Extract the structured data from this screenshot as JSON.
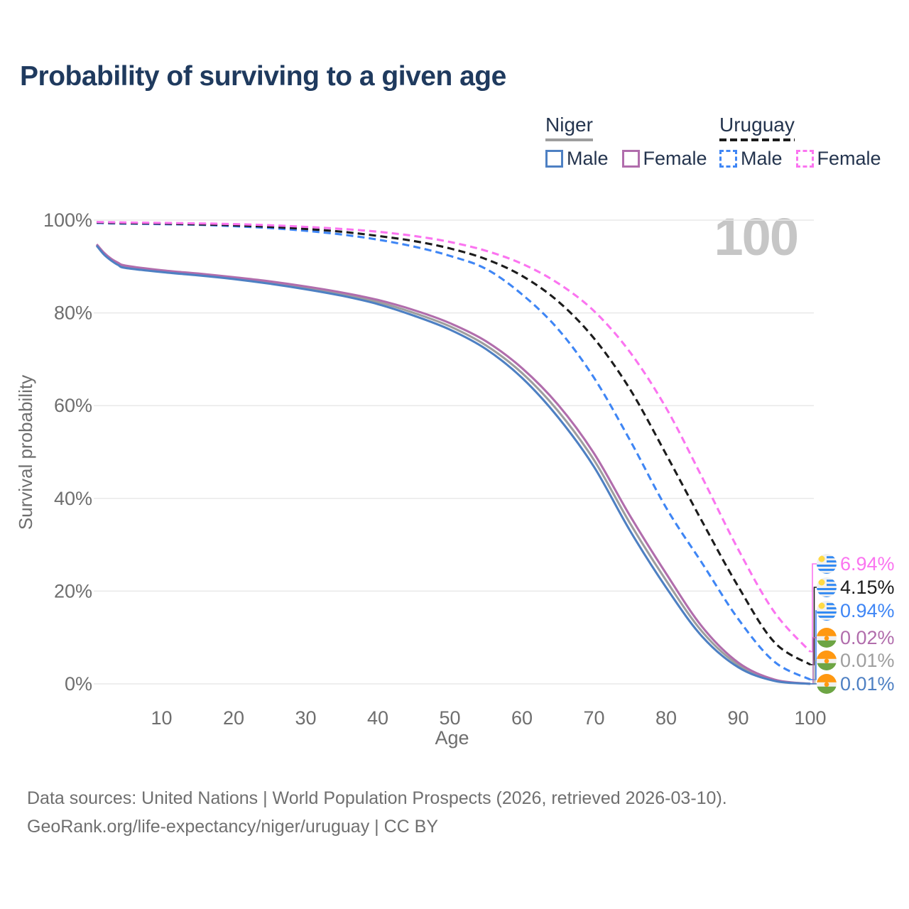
{
  "title": "Probability of surviving to a given age",
  "watermark": "100",
  "legend": {
    "groups": [
      {
        "country": "Niger",
        "style": "solid",
        "underline_color": "#9e9e9e",
        "items": [
          {
            "label": "Male",
            "series": "niger-male"
          },
          {
            "label": "Female",
            "series": "niger-female"
          }
        ]
      },
      {
        "country": "Uruguay",
        "style": "dashed",
        "underline_color": "#1c1c1c",
        "items": [
          {
            "label": "Male",
            "series": "uruguay-male"
          },
          {
            "label": "Female",
            "series": "uruguay-female"
          }
        ]
      }
    ]
  },
  "footer": {
    "line1": "Data sources: United Nations | World Population Prospects (2026, retrieved 2026-03-10).",
    "line2": "GeoRank.org/life-expectancy/niger/uruguay | CC BY"
  },
  "chart_data": {
    "type": "line",
    "title": "Probability of surviving to a given age",
    "xlabel": "Age",
    "ylabel": "Survival probability",
    "xlim": [
      0,
      100
    ],
    "ylim": [
      0,
      100
    ],
    "grid": "horizontal",
    "legend_position": "top-right",
    "x_ticks": [
      10,
      20,
      30,
      40,
      50,
      60,
      70,
      80,
      90,
      100
    ],
    "y_ticks": {
      "values": [
        0,
        20,
        40,
        60,
        80,
        100
      ],
      "labels": [
        "0%",
        "20%",
        "40%",
        "60%",
        "80%",
        "100%"
      ]
    },
    "age_marker": "100",
    "ages": [
      1,
      2,
      3,
      4,
      5,
      10,
      15,
      20,
      25,
      30,
      35,
      40,
      45,
      50,
      55,
      60,
      65,
      70,
      75,
      80,
      85,
      90,
      95,
      100
    ],
    "series": [
      {
        "id": "niger-total",
        "name": "Niger Total",
        "color": "#9e9e9e",
        "dashed": false,
        "flag": "niger",
        "end_label": "0.01%",
        "row": 4,
        "values": [
          94.65,
          92.8,
          91.5,
          90.55,
          89.95,
          89.0,
          88.3,
          87.5,
          86.55,
          85.4,
          84.05,
          82.35,
          80.0,
          77.1,
          73.0,
          67.05,
          58.85,
          48.25,
          34.6,
          22.3,
          11.25,
          4.1,
          0.8,
          0.01
        ]
      },
      {
        "id": "niger-female",
        "name": "Niger Female",
        "color": "#b16dac",
        "dashed": false,
        "flag": "niger",
        "end_label": "0.02%",
        "row": 3,
        "values": [
          94.8,
          93.0,
          91.7,
          90.8,
          90.2,
          89.2,
          88.5,
          87.7,
          86.8,
          85.7,
          84.4,
          82.8,
          80.6,
          77.8,
          73.9,
          68.1,
          60.2,
          49.7,
          36.2,
          23.8,
          12.3,
          4.6,
          0.95,
          0.02
        ]
      },
      {
        "id": "niger-male",
        "name": "Niger Male",
        "color": "#4e80c3",
        "dashed": false,
        "flag": "niger",
        "end_label": "0.01%",
        "row": 5,
        "values": [
          94.5,
          92.6,
          91.3,
          90.3,
          89.7,
          88.8,
          88.1,
          87.3,
          86.3,
          85.1,
          83.7,
          81.9,
          79.4,
          76.4,
          72.2,
          66.0,
          57.5,
          46.8,
          33.0,
          20.8,
          10.2,
          3.6,
          0.65,
          0.01
        ]
      },
      {
        "id": "uruguay-male",
        "name": "Uruguay Male",
        "color": "#3f86f5",
        "dashed": true,
        "flag": "uruguay",
        "end_label": "0.94%",
        "row": 2,
        "values": [
          99.4,
          99.35,
          99.3,
          99.28,
          99.25,
          99.15,
          99.0,
          98.7,
          98.3,
          97.7,
          96.9,
          95.8,
          94.3,
          92.3,
          89.5,
          84.0,
          76.5,
          66.0,
          52.5,
          38.0,
          26.0,
          14.0,
          4.8,
          0.94
        ]
      },
      {
        "id": "uruguay-total",
        "name": "Uruguay Total",
        "color": "#1c1c1c",
        "dashed": true,
        "flag": "uruguay",
        "end_label": "4.15%",
        "row": 1,
        "values": [
          99.5,
          99.45,
          99.4,
          99.38,
          99.35,
          99.25,
          99.1,
          98.9,
          98.55,
          98.1,
          97.5,
          96.6,
          95.5,
          93.9,
          91.6,
          88.0,
          82.5,
          74.5,
          63.5,
          49.5,
          35.0,
          21.0,
          9.0,
          4.15
        ]
      },
      {
        "id": "uruguay-female",
        "name": "Uruguay Female",
        "color": "#fb74f0",
        "dashed": true,
        "flag": "uruguay",
        "end_label": "6.94%",
        "row": 0,
        "values": [
          99.6,
          99.57,
          99.55,
          99.52,
          99.5,
          99.4,
          99.3,
          99.15,
          98.9,
          98.55,
          98.1,
          97.5,
          96.6,
          95.3,
          93.4,
          90.6,
          86.4,
          80.4,
          71.5,
          59.5,
          44.5,
          29.0,
          15.5,
          6.94
        ]
      }
    ]
  }
}
